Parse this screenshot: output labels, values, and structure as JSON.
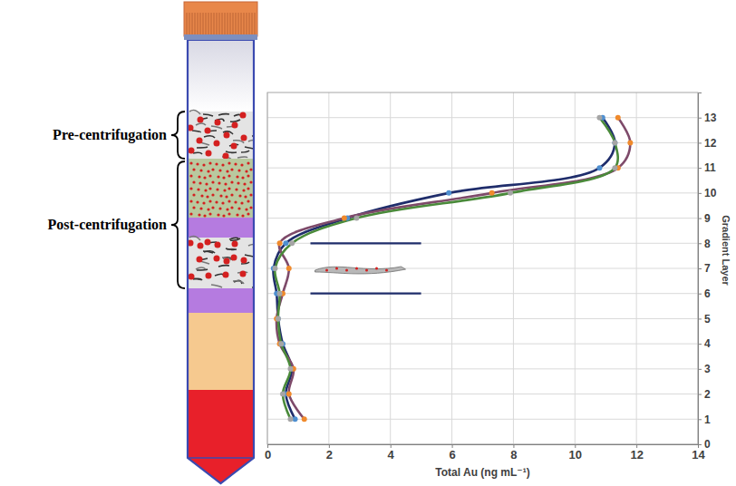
{
  "chart_data": {
    "type": "line",
    "orientation": "horizontal",
    "xlabel": "Total Au (ng mL⁻¹)",
    "ylabel": "Gradient Layer",
    "y": [
      1,
      2,
      3,
      4,
      5,
      6,
      7,
      8,
      9,
      10,
      11,
      12,
      13
    ],
    "xlim": [
      0,
      14
    ],
    "xticks": [
      0,
      2,
      4,
      6,
      8,
      10,
      12,
      14
    ],
    "ylim": [
      0,
      14
    ],
    "yticks": [
      0,
      1,
      2,
      3,
      4,
      5,
      6,
      7,
      8,
      9,
      10,
      11,
      12,
      13
    ],
    "grid": true,
    "marker": "circle",
    "annotations": [
      "Pre-centrifugation",
      "Post-centrifugation"
    ],
    "marked_layers": [
      6,
      8
    ],
    "series": [
      {
        "color": "#1f2d6b",
        "values": [
          0.9,
          0.6,
          0.8,
          0.5,
          0.35,
          0.3,
          0.2,
          0.6,
          2.6,
          5.9,
          10.8,
          11.3,
          10.9
        ]
      },
      {
        "color": "#7e4a6a",
        "values": [
          1.2,
          0.7,
          0.85,
          0.4,
          0.3,
          0.5,
          0.7,
          0.4,
          2.5,
          7.3,
          11.4,
          11.8,
          11.4
        ]
      },
      {
        "color": "#4a8a3a",
        "values": [
          0.75,
          0.5,
          0.75,
          0.45,
          0.35,
          0.4,
          0.25,
          0.8,
          2.9,
          7.9,
          11.3,
          11.3,
          10.8
        ]
      }
    ]
  }
}
